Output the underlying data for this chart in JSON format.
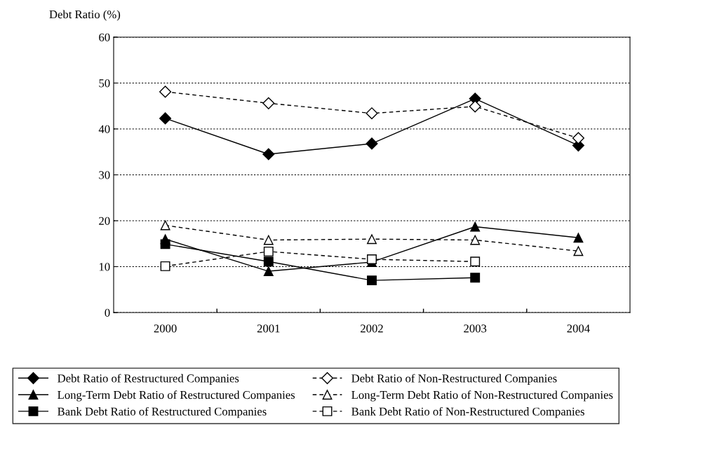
{
  "chart_data": {
    "type": "line",
    "ylabel": "Debt Ratio (%)",
    "categories": [
      "2000",
      "2001",
      "2002",
      "2003",
      "2004"
    ],
    "ylim": [
      0,
      60
    ],
    "yticks": [
      0,
      10,
      20,
      30,
      40,
      50,
      60
    ],
    "grid": "y",
    "legend": "bottom",
    "series": [
      {
        "name": "Debt Ratio of Restructured Companies",
        "color": "#000000",
        "marker": "diamond",
        "line_style": "solid",
        "values": [
          42.3,
          34.5,
          36.8,
          46.6,
          36.4
        ]
      },
      {
        "name": "Debt Ratio of Non-Restructured Companies",
        "color": "#000000",
        "marker": "diamond",
        "line_style": "dashed",
        "values": [
          48.1,
          45.6,
          43.4,
          44.9,
          38.0
        ]
      },
      {
        "name": "Long-Term Debt Ratio of Restructured Companies",
        "color": "#000000",
        "marker": "triangle",
        "line_style": "solid",
        "values": [
          16.0,
          9.0,
          11.0,
          18.7,
          16.3
        ]
      },
      {
        "name": "Long-Term Debt Ratio of Non-Restructured Companies",
        "color": "#000000",
        "marker": "triangle",
        "line_style": "dashed",
        "values": [
          19.0,
          15.8,
          16.0,
          15.8,
          13.4
        ]
      },
      {
        "name": "Bank Debt Ratio of Restructured Companies",
        "color": "#000000",
        "marker": "square",
        "line_style": "solid",
        "values": [
          14.9,
          11.1,
          7.0,
          7.6,
          null
        ]
      },
      {
        "name": "Bank Debt Ratio of Non-Restructured Companies",
        "color": "#000000",
        "marker": "square",
        "line_style": "dashed",
        "values": [
          10.1,
          13.3,
          11.6,
          11.1,
          null
        ]
      }
    ]
  }
}
